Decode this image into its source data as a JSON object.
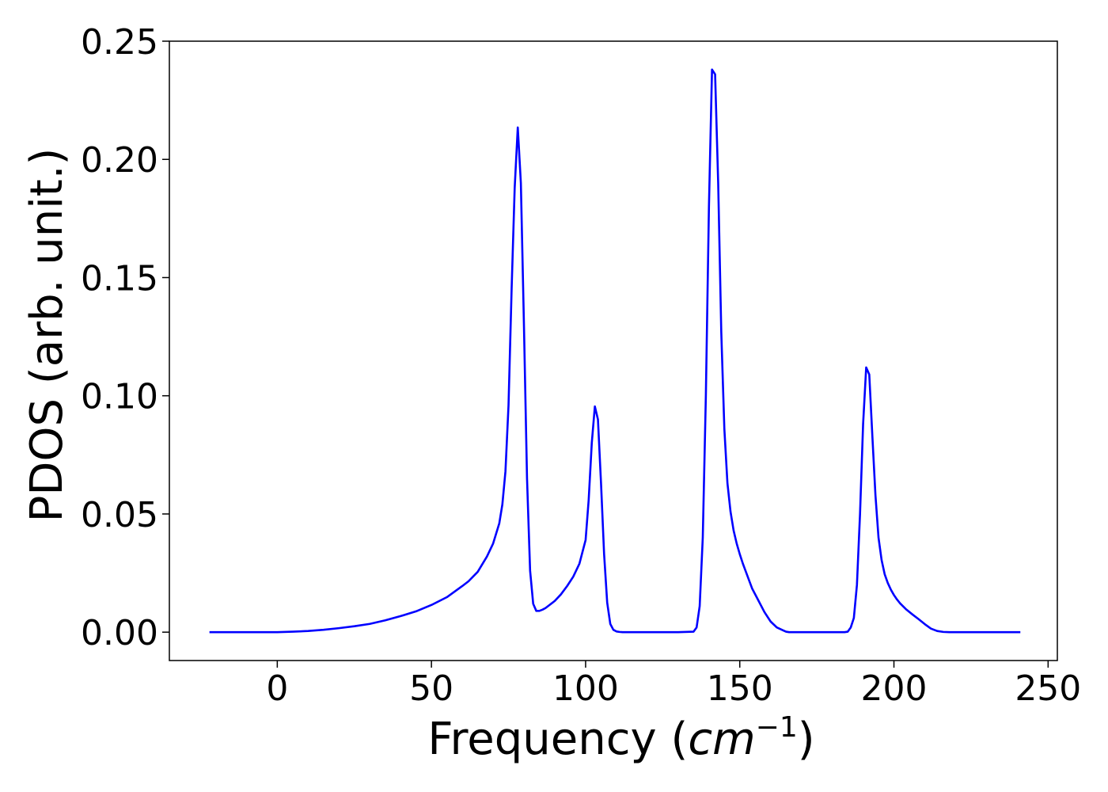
{
  "chart_data": {
    "type": "line",
    "title": "",
    "xlabel_main": "Frequency (",
    "xlabel_unit_base": "cm",
    "xlabel_unit_exp": "−1",
    "xlabel_close": ")",
    "ylabel": "PDOS (arb. unit.)",
    "xlim": [
      -35,
      253
    ],
    "ylim": [
      -0.012,
      0.25
    ],
    "xticks": [
      0,
      50,
      100,
      150,
      200,
      250
    ],
    "xtick_labels": [
      "0",
      "50",
      "100",
      "150",
      "200",
      "250"
    ],
    "yticks": [
      0.0,
      0.05,
      0.1,
      0.15,
      0.2,
      0.25
    ],
    "ytick_labels": [
      "0.00",
      "0.05",
      "0.10",
      "0.15",
      "0.20",
      "0.25"
    ],
    "grid": false,
    "line_color": "#0000ff",
    "series": [
      {
        "x": [
          -22,
          0,
          5,
          10,
          15,
          20,
          25,
          30,
          35,
          40,
          45,
          50,
          55,
          60,
          62,
          65,
          68,
          70,
          72,
          73,
          74,
          75,
          76,
          77,
          78,
          79,
          80,
          81,
          82,
          83,
          84,
          85,
          86,
          87,
          88,
          90,
          92,
          94,
          96,
          98,
          100,
          101,
          102,
          103,
          104,
          105,
          106,
          107,
          108,
          109,
          110,
          111,
          112,
          114,
          120,
          130,
          135,
          136,
          137,
          138,
          139,
          140,
          141,
          142,
          143,
          144,
          145,
          146,
          147,
          148,
          149,
          150,
          151,
          152,
          153,
          154,
          156,
          158,
          160,
          162,
          164,
          165,
          166,
          167,
          168,
          170,
          175,
          180,
          184,
          185,
          186,
          187,
          188,
          189,
          190,
          191,
          192,
          193,
          194,
          195,
          196,
          197,
          198,
          199,
          200,
          201,
          202,
          204,
          206,
          208,
          210,
          212,
          214,
          216,
          218,
          220,
          222,
          224,
          230,
          241
        ],
        "y": [
          0.0,
          0.0,
          0.0002,
          0.0005,
          0.001,
          0.0017,
          0.0025,
          0.0035,
          0.005,
          0.0068,
          0.0088,
          0.0115,
          0.0148,
          0.0195,
          0.0215,
          0.0255,
          0.032,
          0.0375,
          0.046,
          0.054,
          0.068,
          0.096,
          0.145,
          0.188,
          0.2135,
          0.19,
          0.13,
          0.065,
          0.026,
          0.012,
          0.009,
          0.009,
          0.0095,
          0.0102,
          0.0112,
          0.0132,
          0.016,
          0.0195,
          0.0235,
          0.029,
          0.039,
          0.056,
          0.08,
          0.0955,
          0.09,
          0.063,
          0.033,
          0.0125,
          0.0035,
          0.001,
          0.0003,
          0.0001,
          0.0,
          0.0,
          0.0,
          0.0,
          0.0002,
          0.002,
          0.011,
          0.04,
          0.1,
          0.18,
          0.238,
          0.236,
          0.19,
          0.127,
          0.086,
          0.063,
          0.051,
          0.043,
          0.0375,
          0.033,
          0.029,
          0.0255,
          0.022,
          0.0185,
          0.0135,
          0.0085,
          0.0045,
          0.002,
          0.0008,
          0.0002,
          0.0,
          0.0,
          0.0,
          0.0,
          0.0,
          0.0,
          0.0,
          0.0002,
          0.002,
          0.006,
          0.02,
          0.05,
          0.088,
          0.112,
          0.109,
          0.083,
          0.058,
          0.04,
          0.0305,
          0.0245,
          0.0208,
          0.018,
          0.0157,
          0.0138,
          0.0122,
          0.0096,
          0.0075,
          0.0055,
          0.0034,
          0.0015,
          0.0005,
          0.0001,
          0.0,
          0.0,
          0.0,
          0.0,
          0.0,
          0.0
        ]
      }
    ]
  }
}
